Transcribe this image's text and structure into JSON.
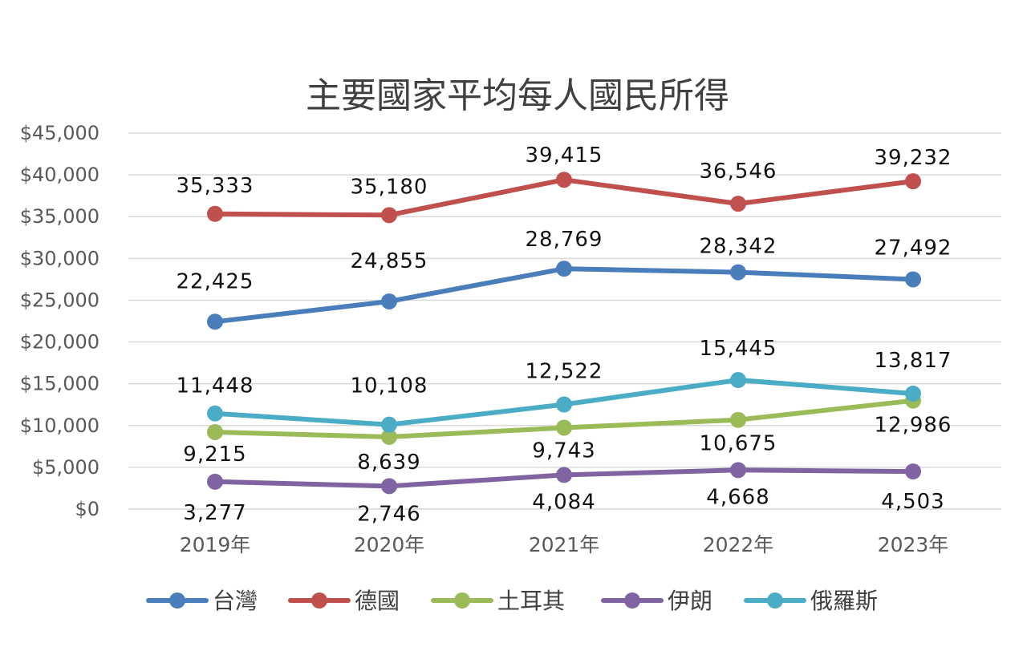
{
  "chart_data": {
    "type": "line",
    "title": "主要國家平均每人國民所得",
    "xlabel": "",
    "ylabel": "",
    "categories": [
      "2019年",
      "2020年",
      "2021年",
      "2022年",
      "2023年"
    ],
    "ylim": [
      0,
      45000
    ],
    "yticks": [
      "$0",
      "$5,000",
      "$10,000",
      "$15,000",
      "$20,000",
      "$25,000",
      "$30,000",
      "$35,000",
      "$40,000",
      "$45,000"
    ],
    "grid": true,
    "legend_position": "bottom",
    "series": [
      {
        "name": "台灣",
        "color": "#4a7ebb",
        "values": [
          22425,
          24855,
          28769,
          28342,
          27492
        ],
        "labels": [
          "22,425",
          "24,855",
          "28,769",
          "28,342",
          "27,492"
        ]
      },
      {
        "name": "德國",
        "color": "#c0504d",
        "values": [
          35333,
          35180,
          39415,
          36546,
          39232
        ],
        "labels": [
          "35,333",
          "35,180",
          "39,415",
          "36,546",
          "39,232"
        ]
      },
      {
        "name": "土耳其",
        "color": "#9bbb59",
        "values": [
          9215,
          8639,
          9743,
          10675,
          12986
        ],
        "labels": [
          "9,215",
          "8,639",
          "9,743",
          "10,675",
          "12,986"
        ]
      },
      {
        "name": "伊朗",
        "color": "#8064a2",
        "values": [
          3277,
          2746,
          4084,
          4668,
          4503
        ],
        "labels": [
          "3,277",
          "2,746",
          "4,084",
          "4,668",
          "4,503"
        ]
      },
      {
        "name": "俄羅斯",
        "color": "#4bacc6",
        "values": [
          11448,
          10108,
          12522,
          15445,
          13817
        ],
        "labels": [
          "11,448",
          "10,108",
          "12,522",
          "15,445",
          "13,817"
        ]
      }
    ]
  }
}
